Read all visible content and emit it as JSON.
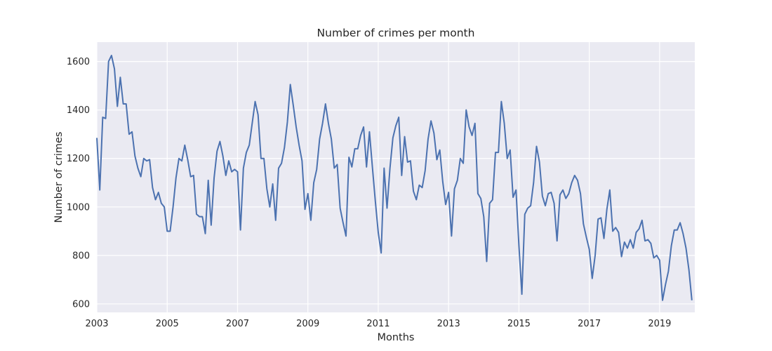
{
  "chart_data": {
    "type": "line",
    "title": "Number of crimes per month",
    "xlabel": "Months",
    "ylabel": "Number of crimes",
    "x_ticks": [
      "2003",
      "2005",
      "2007",
      "2009",
      "2011",
      "2013",
      "2015",
      "2017",
      "2019"
    ],
    "y_ticks": [
      600,
      800,
      1000,
      1200,
      1400,
      1600
    ],
    "xlim": [
      "2003-01",
      "2020-01"
    ],
    "ylim": [
      565,
      1680
    ],
    "grid": true,
    "legend": "none",
    "colors": {
      "line": "#4c72b0",
      "plot_bg": "#eaeaf2",
      "grid": "#ffffff"
    },
    "series": [
      {
        "start": "2003-01",
        "frequency": "monthly",
        "values": [
          1285,
          1070,
          1370,
          1365,
          1600,
          1625,
          1570,
          1415,
          1535,
          1425,
          1425,
          1300,
          1310,
          1210,
          1160,
          1125,
          1200,
          1190,
          1195,
          1080,
          1030,
          1060,
          1015,
          1000,
          900,
          900,
          1000,
          1120,
          1200,
          1190,
          1255,
          1195,
          1125,
          1130,
          970,
          960,
          960,
          890,
          1110,
          925,
          1120,
          1230,
          1270,
          1210,
          1130,
          1190,
          1145,
          1155,
          1145,
          905,
          1160,
          1225,
          1255,
          1345,
          1435,
          1380,
          1200,
          1200,
          1075,
          1000,
          1095,
          945,
          1160,
          1180,
          1245,
          1350,
          1505,
          1420,
          1330,
          1255,
          1190,
          990,
          1055,
          945,
          1100,
          1155,
          1280,
          1345,
          1425,
          1345,
          1280,
          1160,
          1175,
          995,
          935,
          880,
          1205,
          1165,
          1240,
          1240,
          1295,
          1330,
          1165,
          1310,
          1165,
          1025,
          895,
          810,
          1160,
          995,
          1160,
          1285,
          1335,
          1370,
          1130,
          1290,
          1185,
          1190,
          1065,
          1030,
          1090,
          1080,
          1150,
          1280,
          1355,
          1305,
          1195,
          1235,
          1105,
          1010,
          1060,
          880,
          1075,
          1110,
          1200,
          1180,
          1400,
          1330,
          1295,
          1345,
          1055,
          1035,
          960,
          775,
          1015,
          1030,
          1225,
          1225,
          1435,
          1345,
          1200,
          1235,
          1040,
          1070,
          840,
          640,
          970,
          995,
          1005,
          1100,
          1250,
          1185,
          1045,
          1005,
          1055,
          1060,
          1015,
          860,
          1050,
          1070,
          1035,
          1055,
          1100,
          1130,
          1110,
          1055,
          930,
          875,
          825,
          705,
          800,
          950,
          955,
          870,
          990,
          1070,
          900,
          915,
          895,
          795,
          855,
          830,
          865,
          830,
          895,
          910,
          945,
          860,
          865,
          850,
          790,
          800,
          780,
          615,
          680,
          735,
          840,
          905,
          905,
          935,
          890,
          830,
          740,
          615
        ]
      }
    ]
  }
}
